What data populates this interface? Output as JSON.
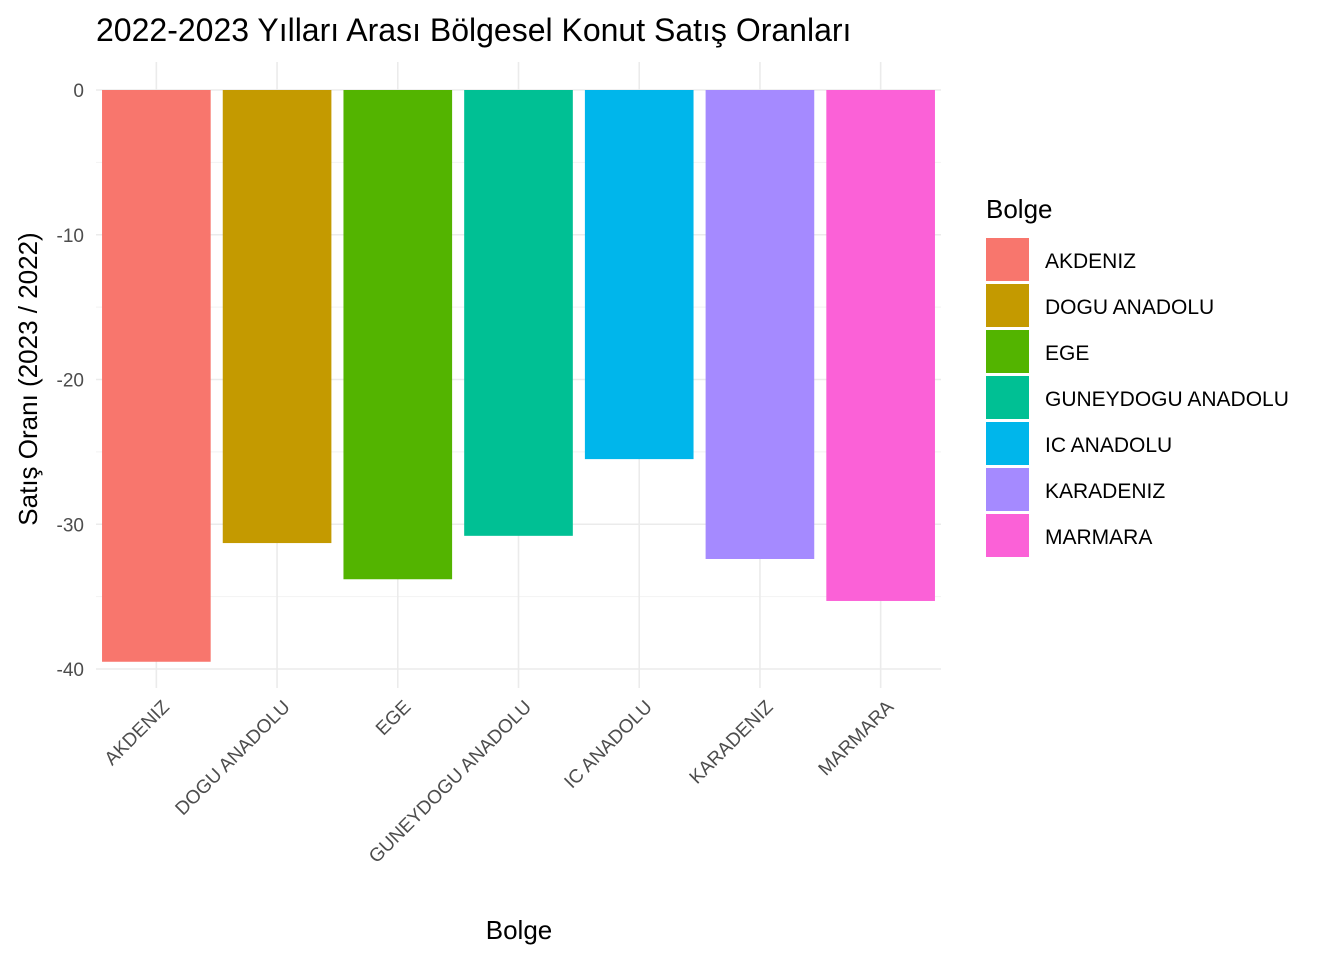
{
  "chart_data": {
    "type": "bar",
    "title": "2022-2023 Yılları Arası Bölgesel Konut Satış Oranları",
    "xlabel": "Bolge",
    "ylabel": "Satış Oranı (2023 / 2022)",
    "categories": [
      "AKDENIZ",
      "DOGU ANADOLU",
      "EGE",
      "GUNEYDOGU ANADOLU",
      "IC ANADOLU",
      "KARADENIZ",
      "MARMARA"
    ],
    "values": [
      -39.5,
      -31.3,
      -33.8,
      -30.8,
      -25.5,
      -32.4,
      -35.3
    ],
    "colors": [
      "#F8766D",
      "#C49A00",
      "#53B400",
      "#00C094",
      "#00B6EB",
      "#A58AFF",
      "#FB61D7"
    ],
    "ylim": [
      -40,
      0
    ],
    "yticks": [
      0,
      -10,
      -20,
      -30,
      -40
    ],
    "grid": true,
    "legend": {
      "title": "Bolge",
      "placement": "right"
    }
  }
}
